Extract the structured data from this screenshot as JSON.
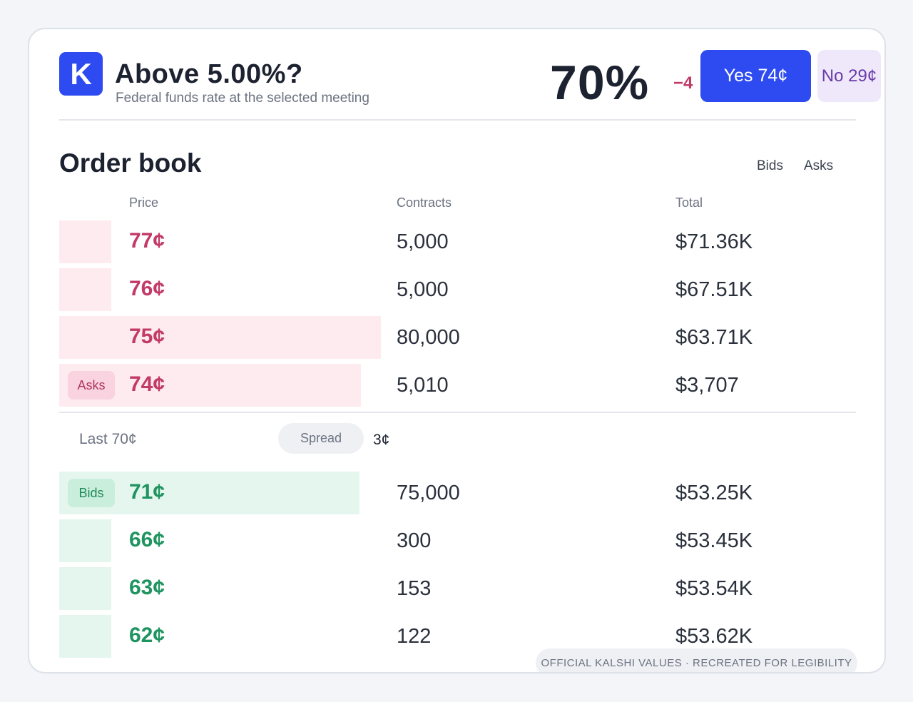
{
  "header": {
    "logo_letter": "K",
    "title": "Above 5.00%?",
    "subtitle": "Federal funds rate at the selected meeting",
    "probability": "70%",
    "change": "−4",
    "yes_label": "Yes 74¢",
    "no_label": "No 29¢"
  },
  "orderbook": {
    "title": "Order book",
    "toggle_bids": "Bids",
    "toggle_asks": "Asks",
    "columns": {
      "price": "Price",
      "contracts": "Contracts",
      "total": "Total"
    },
    "asks_badge": "Asks",
    "bids_badge": "Bids",
    "asks": [
      {
        "price": "77¢",
        "contracts": "5,000",
        "total": "$71.36K",
        "depth": 0.065
      },
      {
        "price": "76¢",
        "contracts": "5,000",
        "total": "$67.51K",
        "depth": 0.065
      },
      {
        "price": "75¢",
        "contracts": "80,000",
        "total": "$63.71K",
        "depth": 0.404
      },
      {
        "price": "74¢",
        "contracts": "5,010",
        "total": "$3,707",
        "depth": 0.379
      }
    ],
    "bids": [
      {
        "price": "71¢",
        "contracts": "75,000",
        "total": "$53.25K",
        "depth": 0.377
      },
      {
        "price": "66¢",
        "contracts": "300",
        "total": "$53.45K",
        "depth": 0.065
      },
      {
        "price": "63¢",
        "contracts": "153",
        "total": "$53.54K",
        "depth": 0.065
      },
      {
        "price": "62¢",
        "contracts": "122",
        "total": "$53.62K",
        "depth": 0.065
      }
    ],
    "last_label": "Last 70¢",
    "spread_label": "Spread",
    "spread_value": "3¢"
  },
  "footer": {
    "note": "OFFICIAL KALSHI VALUES · RECREATED FOR LEGIBILITY"
  },
  "colors": {
    "accent": "#2d4bf0",
    "ask": "#c23a67",
    "bid": "#1f9460"
  }
}
